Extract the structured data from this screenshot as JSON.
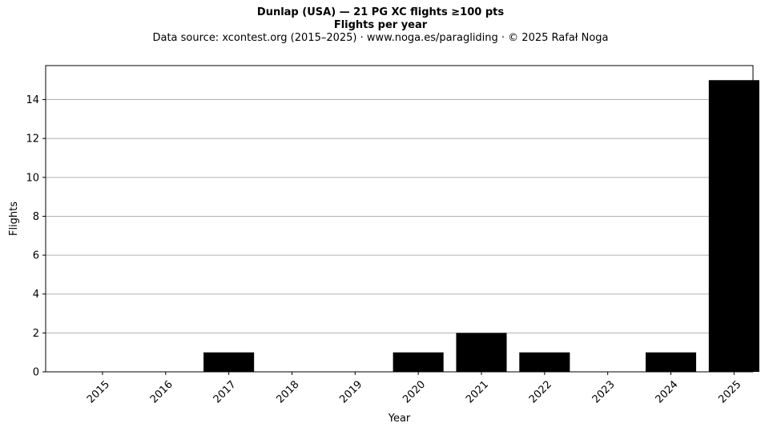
{
  "chart_data": {
    "type": "bar",
    "title_line1": "Dunlap (USA)  —  21 PG XC flights ≥100 pts",
    "title_line2": "Flights per year",
    "subtitle": "Data source: xcontest.org (2015–2025)  ·  www.noga.es/paragliding  ·  © 2025 Rafał Noga",
    "xlabel": "Year",
    "ylabel": "Flights",
    "categories": [
      "2015",
      "2016",
      "2017",
      "2018",
      "2019",
      "2020",
      "2021",
      "2022",
      "2023",
      "2024",
      "2025"
    ],
    "values": [
      0,
      0,
      1,
      0,
      0,
      1,
      2,
      1,
      0,
      1,
      15
    ],
    "ylim": [
      0,
      15.75
    ],
    "yticks": [
      0,
      2,
      4,
      6,
      8,
      10,
      12,
      14
    ],
    "grid": "y",
    "bar_color": "#000000",
    "grid_color": "#b0b0b0"
  }
}
